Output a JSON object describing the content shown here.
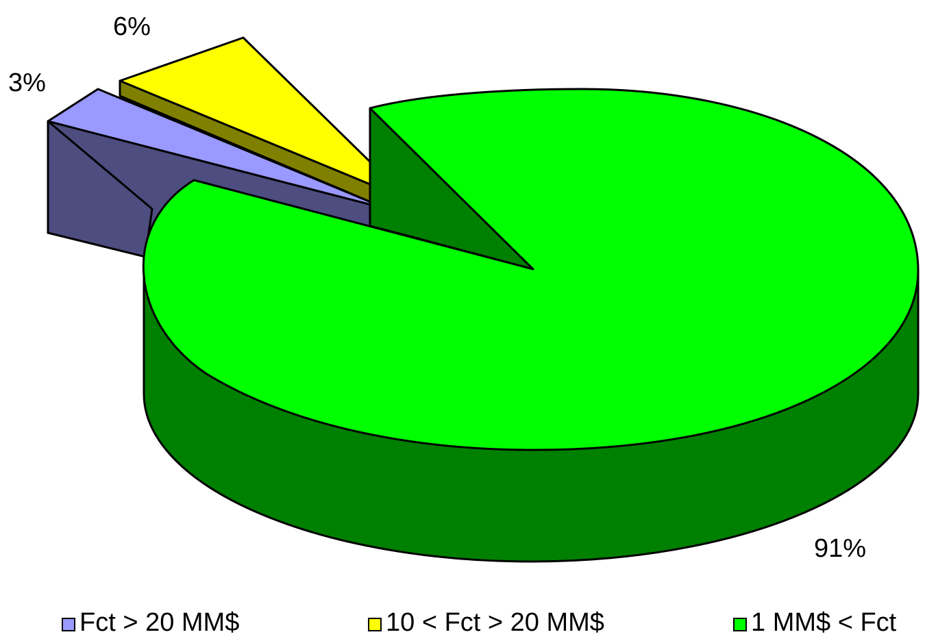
{
  "chart_data": {
    "type": "pie",
    "title": "",
    "style": "3d-exploded",
    "slices": [
      {
        "label": "Fct > 20 MM$",
        "value": 3,
        "display": "3%",
        "color": "#9999ff",
        "side_color": "#4d4d80"
      },
      {
        "label": "10 < Fct > 20 MM$",
        "value": 6,
        "display": "6%",
        "color": "#ffff00",
        "side_color": "#808000"
      },
      {
        "label": "1 MM$ < Fct",
        "value": 91,
        "display": "91%",
        "color": "#00ff00",
        "side_color": "#008000"
      }
    ],
    "legend_position": "bottom"
  }
}
